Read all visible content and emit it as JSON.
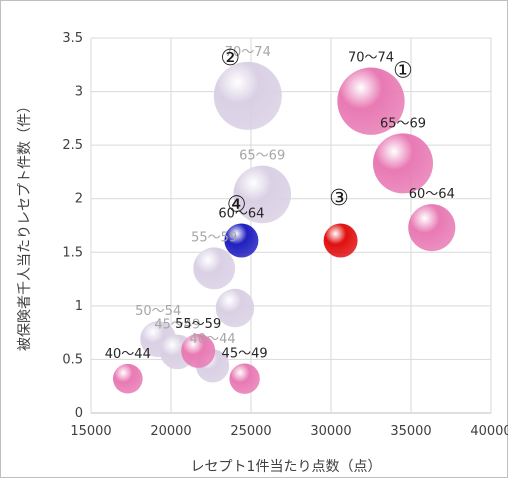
{
  "chart_data": {
    "type": "scatter",
    "xlabel": "レセプト1件当たり点数（点）",
    "ylabel": "被保険者千人当たりレセプト件数（件）",
    "xlim": [
      15000,
      40000
    ],
    "ylim": [
      0,
      3.5
    ],
    "x_ticks": [
      "15000",
      "20000",
      "25000",
      "30000",
      "35000",
      "40000"
    ],
    "y_ticks": [
      "0",
      "0.5",
      "1",
      "1.5",
      "2",
      "2.5",
      "3",
      "3.5"
    ],
    "grid": true,
    "series": [
      {
        "color": "#d9d0e4",
        "points": [
          {
            "x": 24800,
            "y": 2.96,
            "size": 1.0,
            "label": "70〜74"
          },
          {
            "x": 25700,
            "y": 2.04,
            "size": 0.72,
            "label": "65〜69"
          },
          {
            "x": 22700,
            "y": 1.35,
            "size": 0.38,
            "label": "55〜59"
          },
          {
            "x": 24000,
            "y": 0.98,
            "size": 0.32,
            "label": ""
          },
          {
            "x": 19200,
            "y": 0.69,
            "size": 0.28,
            "label": "50〜54"
          },
          {
            "x": 20400,
            "y": 0.57,
            "size": 0.26,
            "label": "45〜49"
          },
          {
            "x": 22600,
            "y": 0.44,
            "size": 0.24,
            "label": "40〜44"
          }
        ]
      },
      {
        "color": "#e87ab4",
        "points": [
          {
            "x": 32500,
            "y": 2.91,
            "size": 0.98,
            "label": "70〜74"
          },
          {
            "x": 34500,
            "y": 2.33,
            "size": 0.78,
            "label": "65〜69"
          },
          {
            "x": 36300,
            "y": 1.73,
            "size": 0.48,
            "label": "60〜64"
          },
          {
            "x": 21700,
            "y": 0.58,
            "size": 0.25,
            "label": "55〜59"
          },
          {
            "x": 24600,
            "y": 0.32,
            "size": 0.2,
            "label": "45〜49"
          },
          {
            "x": 17300,
            "y": 0.32,
            "size": 0.19,
            "label": "40〜44"
          }
        ]
      },
      {
        "color": "#2020c0",
        "points": [
          {
            "x": 24400,
            "y": 1.61,
            "size": 0.25,
            "label": "60〜64"
          }
        ]
      },
      {
        "color": "#e01010",
        "points": [
          {
            "x": 30600,
            "y": 1.61,
            "size": 0.25,
            "label": ""
          }
        ]
      }
    ],
    "markers": [
      {
        "text": "①",
        "x": 34500,
        "y": 3.13
      },
      {
        "text": "②",
        "x": 23700,
        "y": 3.25
      },
      {
        "text": "③",
        "x": 30500,
        "y": 1.94
      },
      {
        "text": "④",
        "x": 24100,
        "y": 1.88
      }
    ]
  }
}
